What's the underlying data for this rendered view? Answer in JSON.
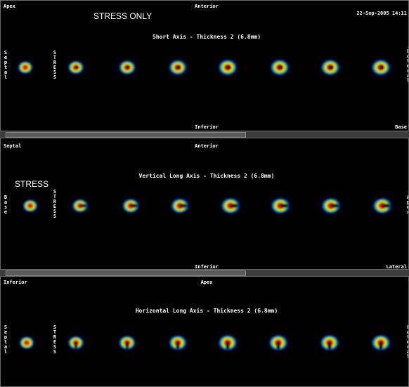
{
  "panels": [
    {
      "top_left": "Apex",
      "top_center": "Anterior",
      "top_right": "22-Sep-2005 14:11",
      "heading": "STRESS ONLY",
      "title": "Short Axis - Thickness 2 (6.8mm)",
      "left_label": "Septal",
      "side_label": "STRESS",
      "right_label": "Lateral",
      "bottom_center": "Inferior",
      "bottom_right": "Base"
    },
    {
      "top_left": "Septal",
      "top_center": "Anterior",
      "heading": "STRESS",
      "title": "Vertical Long Axis - Thickness 2 (6.8mm)",
      "left_label": "Base",
      "side_label": "STRESS",
      "right_label": "Apex",
      "bottom_center": "Inferior",
      "bottom_right": "Lateral"
    },
    {
      "top_left": "Inferior",
      "top_center": "Apex",
      "title": "Horizontal Long Axis - Thickness 2 (6.8mm)",
      "left_label": "Septal",
      "side_label": "STRESS",
      "right_label": "Lateral"
    }
  ]
}
